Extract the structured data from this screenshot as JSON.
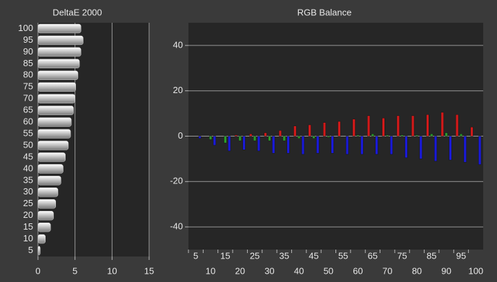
{
  "chart_data": [
    {
      "type": "hbar",
      "title": "DeltaE 2000",
      "categories": [
        "100",
        "95",
        "90",
        "85",
        "80",
        "75",
        "70",
        "65",
        "60",
        "55",
        "50",
        "45",
        "40",
        "35",
        "30",
        "25",
        "20",
        "15",
        "10",
        "5"
      ],
      "values": [
        5.8,
        6.1,
        5.8,
        5.6,
        5.4,
        5.1,
        5.0,
        4.8,
        4.5,
        4.4,
        4.1,
        3.7,
        3.4,
        3.1,
        2.7,
        2.4,
        2.1,
        1.7,
        1.0,
        0.3
      ],
      "color": "#d8d8d8",
      "xlim": [
        0,
        15
      ],
      "xticks": [
        0,
        5,
        10,
        15
      ],
      "grid": true
    },
    {
      "type": "grouped_bar",
      "title": "RGB Balance",
      "categories": [
        "5",
        "10",
        "15",
        "20",
        "25",
        "30",
        "35",
        "40",
        "45",
        "50",
        "55",
        "60",
        "65",
        "70",
        "75",
        "80",
        "85",
        "90",
        "95",
        "100"
      ],
      "series": [
        {
          "color": "#d21a1a",
          "values": [
            0,
            0,
            0,
            0.5,
            1,
            1.5,
            2.5,
            4.5,
            5,
            6,
            6.5,
            7.5,
            9,
            8,
            9,
            9,
            9.5,
            10.5,
            9.5,
            4
          ]
        },
        {
          "color": "#2a9a2a",
          "values": [
            0,
            -1.5,
            -3,
            -2,
            -2,
            -2,
            -2,
            -1,
            -1,
            -0.5,
            0,
            0.5,
            1,
            0.5,
            0.5,
            0.5,
            1,
            1.5,
            1,
            0
          ]
        },
        {
          "color": "#1a1ad8",
          "values": [
            -1,
            -4,
            -6.5,
            -6,
            -6.5,
            -7.5,
            -7.5,
            -8,
            -7.5,
            -7.5,
            -8,
            -8,
            -8,
            -8,
            -9.5,
            -10,
            -11,
            -10.5,
            -11.5,
            -12.5
          ]
        }
      ],
      "ylim": [
        -50,
        50
      ],
      "yticks": [
        -40,
        -20,
        0,
        20,
        40
      ],
      "grid": true
    }
  ]
}
